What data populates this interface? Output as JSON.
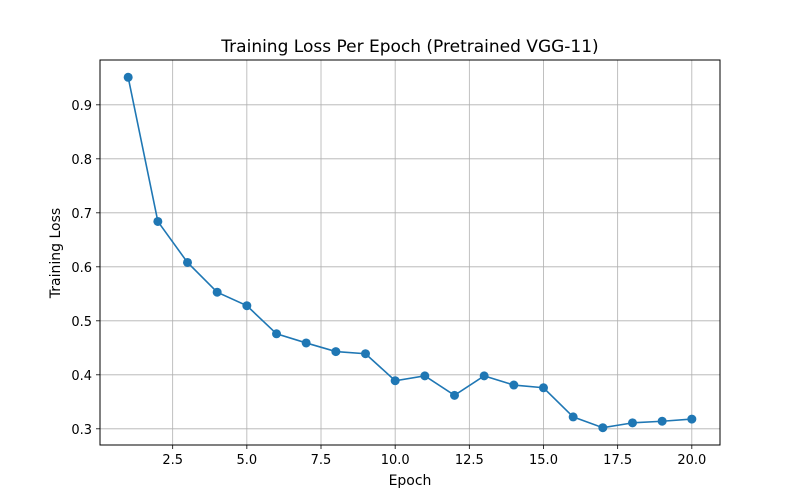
{
  "chart_data": {
    "type": "line",
    "title": "Training Loss Per Epoch (Pretrained VGG-11)",
    "xlabel": "Epoch",
    "ylabel": "Training Loss",
    "xlim": [
      0.05,
      20.95
    ],
    "ylim": [
      0.27,
      0.983
    ],
    "xticks": [
      2.5,
      5.0,
      7.5,
      10.0,
      12.5,
      15.0,
      17.5,
      20.0
    ],
    "xtick_labels": [
      "2.5",
      "5.0",
      "7.5",
      "10.0",
      "12.5",
      "15.0",
      "17.5",
      "20.0"
    ],
    "yticks": [
      0.3,
      0.4,
      0.5,
      0.6,
      0.7,
      0.8,
      0.9
    ],
    "ytick_labels": [
      "0.3",
      "0.4",
      "0.5",
      "0.6",
      "0.7",
      "0.8",
      "0.9"
    ],
    "grid": true,
    "line_color": "#1f77b4",
    "series": [
      {
        "x": [
          1,
          2,
          3,
          4,
          5,
          6,
          7,
          8,
          9,
          10,
          11,
          12,
          13,
          14,
          15,
          16,
          17,
          18,
          19,
          20
        ],
        "values": [
          0.951,
          0.684,
          0.608,
          0.553,
          0.528,
          0.476,
          0.459,
          0.443,
          0.439,
          0.389,
          0.398,
          0.362,
          0.398,
          0.381,
          0.376,
          0.322,
          0.302,
          0.311,
          0.314,
          0.318
        ]
      }
    ]
  }
}
